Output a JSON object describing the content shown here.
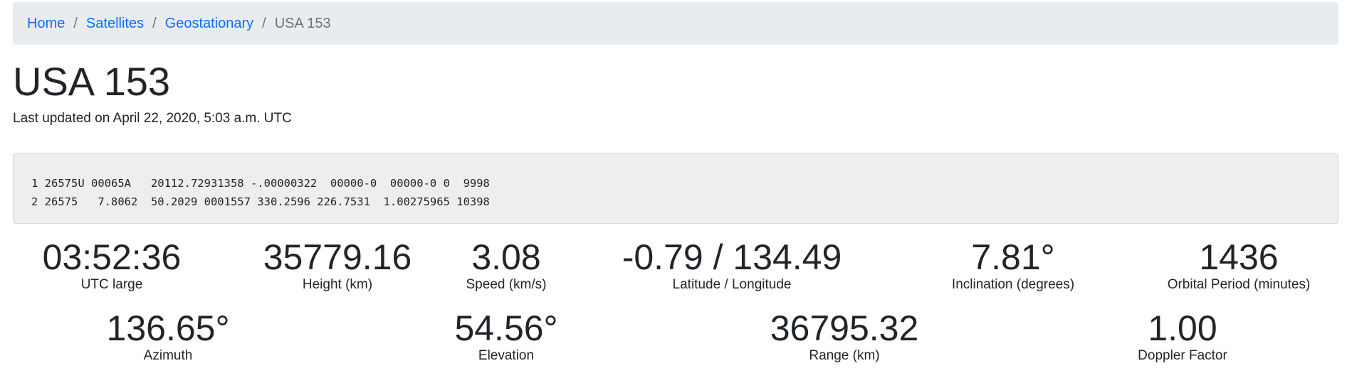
{
  "breadcrumb": {
    "items": [
      "Home",
      "Satellites",
      "Geostationary"
    ],
    "separator": "/",
    "active": "USA 153"
  },
  "page": {
    "title": "USA 153",
    "updated": "Last updated on April 22, 2020, 5:03 a.m. UTC"
  },
  "tle": {
    "line1": "1 26575U 00065A   20112.72931358 -.00000322  00000-0  00000-0 0  9998",
    "line2": "2 26575   7.8062  50.2029 0001557 330.2596 226.7531  1.00275965 10398"
  },
  "stats": {
    "utc": {
      "value": "03:52:36",
      "label": "UTC large"
    },
    "height": {
      "value": "35779.16",
      "label": "Height (km)"
    },
    "speed": {
      "value": "3.08",
      "label": "Speed (km/s)"
    },
    "latlon": {
      "value": "-0.79 / 134.49",
      "label": "Latitude / Longitude"
    },
    "inclination": {
      "value": "7.81°",
      "label": "Inclination (degrees)"
    },
    "period": {
      "value": "1436",
      "label": "Orbital Period (minutes)"
    },
    "azimuth": {
      "value": "136.65°",
      "label": "Azimuth"
    },
    "elevation": {
      "value": "54.56°",
      "label": "Elevation"
    },
    "range": {
      "value": "36795.32",
      "label": "Range (km)"
    },
    "doppler": {
      "value": "1.00",
      "label": "Doppler Factor"
    }
  },
  "colors": {
    "link": "#0d6efd",
    "breadcrumb_bg": "#e9ecef",
    "muted": "#6c757d",
    "tle_bg": "#eeeeee"
  }
}
